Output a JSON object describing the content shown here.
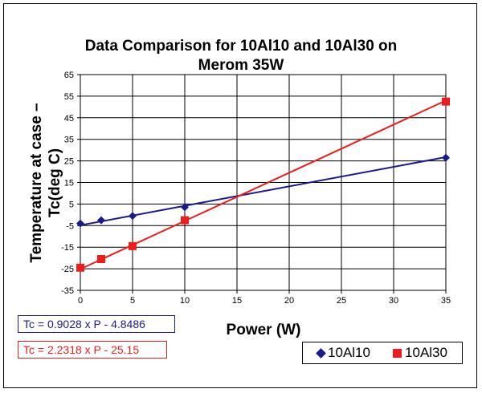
{
  "chart_data": {
    "type": "line",
    "title_lines": [
      "Data Comparison for 10Al10 and 10Al30 on",
      "Merom 35W"
    ],
    "ylabel_lines": [
      "Temperature at case –",
      "Tc(deg C)"
    ],
    "xlabel": "Power (W)",
    "xlim": [
      0,
      35
    ],
    "ylim": [
      -35,
      65
    ],
    "x_ticks": [
      0,
      5,
      10,
      15,
      20,
      25,
      30,
      35
    ],
    "y_ticks": [
      -35,
      -25,
      -15,
      -5,
      5,
      15,
      25,
      35,
      45,
      55,
      65
    ],
    "grid": true,
    "legend_position": "bottom-right",
    "series": [
      {
        "name": "10Al10",
        "color": "#1a1a8c",
        "marker": "diamond",
        "x": [
          0,
          2,
          5,
          10,
          35
        ],
        "y": [
          -4,
          -2.5,
          -0.5,
          3.5,
          26.5
        ],
        "fit": {
          "slope": 0.9028,
          "intercept": -4.8486
        }
      },
      {
        "name": "10Al30",
        "color": "#ee1c1c",
        "marker": "square",
        "x": [
          0,
          2,
          5,
          10,
          35
        ],
        "y": [
          -24.5,
          -20.5,
          -14.5,
          -2.5,
          52.5
        ],
        "fit": {
          "slope": 2.2318,
          "intercept": -25.15
        }
      }
    ],
    "equations": [
      "Tc = 0.9028 x P - 4.8486",
      "Tc = 2.2318 x P - 25.15"
    ]
  }
}
